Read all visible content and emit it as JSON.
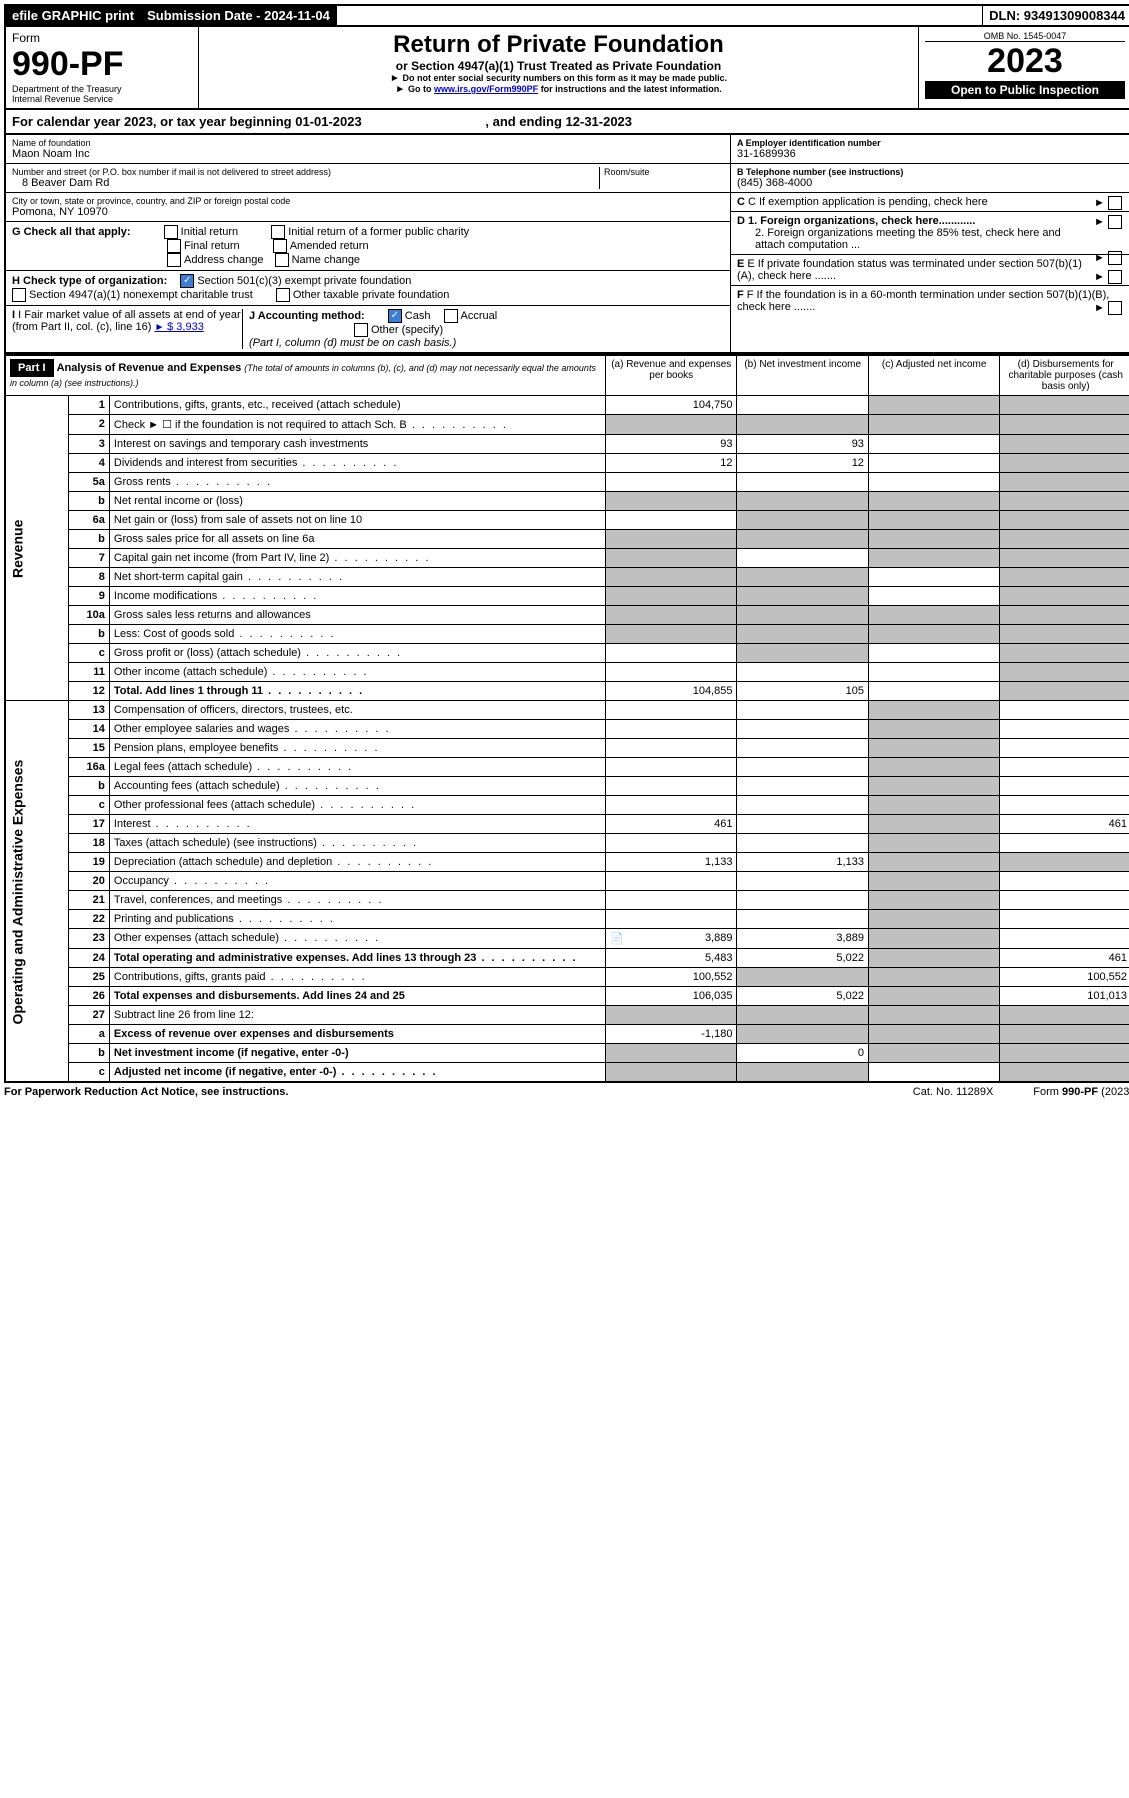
{
  "topbar": {
    "efile": "efile GRAPHIC print",
    "submission": "Submission Date - 2024-11-04",
    "dln": "DLN: 93491309008344"
  },
  "header": {
    "form_label": "Form",
    "form_no": "990-PF",
    "dept": "Department of the Treasury",
    "irs": "Internal Revenue Service",
    "title": "Return of Private Foundation",
    "subtitle": "or Section 4947(a)(1) Trust Treated as Private Foundation",
    "note1": "Do not enter social security numbers on this form as it may be made public.",
    "note2_pre": "Go to ",
    "note2_link": "www.irs.gov/Form990PF",
    "note2_post": " for instructions and the latest information.",
    "omb": "OMB No. 1545-0047",
    "year": "2023",
    "open": "Open to Public Inspection"
  },
  "calendar": {
    "text_a": "For calendar year 2023, or tax year beginning 01-01-2023",
    "text_b": ", and ending 12-31-2023"
  },
  "info": {
    "name_label": "Name of foundation",
    "name": "Maon Noam Inc",
    "addr_label": "Number and street (or P.O. box number if mail is not delivered to street address)",
    "addr": "8 Beaver Dam Rd",
    "room_label": "Room/suite",
    "city_label": "City or town, state or province, country, and ZIP or foreign postal code",
    "city": "Pomona, NY  10970",
    "a_label": "A Employer identification number",
    "a_val": "31-1689936",
    "b_label": "B Telephone number (see instructions)",
    "b_val": "(845) 368-4000",
    "c_label": "C If exemption application is pending, check here",
    "g_label": "G Check all that apply:",
    "g_opts": [
      "Initial return",
      "Final return",
      "Address change",
      "Initial return of a former public charity",
      "Amended return",
      "Name change"
    ],
    "d1": "D 1. Foreign organizations, check here............",
    "d2": "2. Foreign organizations meeting the 85% test, check here and attach computation ...",
    "h_label": "H Check type of organization:",
    "h_opt1": "Section 501(c)(3) exempt private foundation",
    "h_opt2": "Section 4947(a)(1) nonexempt charitable trust",
    "h_opt3": "Other taxable private foundation",
    "e_label": "E If private foundation status was terminated under section 507(b)(1)(A), check here .......",
    "i_label": "I Fair market value of all assets at end of year (from Part II, col. (c), line 16)",
    "i_val": "$  3,933",
    "j_label": "J Accounting method:",
    "j_cash": "Cash",
    "j_accrual": "Accrual",
    "j_other": "Other (specify)",
    "j_note": "(Part I, column (d) must be on cash basis.)",
    "f_label": "F If the foundation is in a 60-month termination under section 507(b)(1)(B), check here ......."
  },
  "part1": {
    "label": "Part I",
    "title": "Analysis of Revenue and Expenses",
    "title_note": " (The total of amounts in columns (b), (c), and (d) may not necessarily equal the amounts in column (a) (see instructions).)",
    "col_a": "(a)  Revenue and expenses per books",
    "col_b": "(b)  Net investment income",
    "col_c": "(c)  Adjusted net income",
    "col_d": "(d)  Disbursements for charitable purposes (cash basis only)"
  },
  "vlabels": {
    "rev": "Revenue",
    "exp": "Operating and Administrative Expenses"
  },
  "rows": [
    {
      "n": "1",
      "d": "Contributions, gifts, grants, etc., received (attach schedule)",
      "a": "104,750",
      "bsh": false,
      "csh": true,
      "dsh": true
    },
    {
      "n": "2",
      "d": "Check ► ☐ if the foundation is not required to attach Sch. B",
      "dots": true,
      "ash": true,
      "bsh": true,
      "csh": true,
      "dsh": true
    },
    {
      "n": "3",
      "d": "Interest on savings and temporary cash investments",
      "a": "93",
      "b": "93",
      "dsh": true
    },
    {
      "n": "4",
      "d": "Dividends and interest from securities",
      "dots": true,
      "a": "12",
      "b": "12",
      "dsh": true
    },
    {
      "n": "5a",
      "d": "Gross rents",
      "dots": true,
      "dsh": true
    },
    {
      "n": "b",
      "d": "Net rental income or (loss)",
      "ash": true,
      "bsh": true,
      "csh": true,
      "dsh": true
    },
    {
      "n": "6a",
      "d": "Net gain or (loss) from sale of assets not on line 10",
      "bsh": true,
      "csh": true,
      "dsh": true
    },
    {
      "n": "b",
      "d": "Gross sales price for all assets on line 6a",
      "ash": true,
      "bsh": true,
      "csh": true,
      "dsh": true
    },
    {
      "n": "7",
      "d": "Capital gain net income (from Part IV, line 2)",
      "dots": true,
      "ash": true,
      "csh": true,
      "dsh": true
    },
    {
      "n": "8",
      "d": "Net short-term capital gain",
      "dots": true,
      "ash": true,
      "bsh": true,
      "dsh": true
    },
    {
      "n": "9",
      "d": "Income modifications",
      "dots": true,
      "ash": true,
      "bsh": true,
      "dsh": true
    },
    {
      "n": "10a",
      "d": "Gross sales less returns and allowances",
      "ash": true,
      "bsh": true,
      "csh": true,
      "dsh": true
    },
    {
      "n": "b",
      "d": "Less: Cost of goods sold",
      "dots": true,
      "ash": true,
      "bsh": true,
      "csh": true,
      "dsh": true
    },
    {
      "n": "c",
      "d": "Gross profit or (loss) (attach schedule)",
      "dots": true,
      "bsh": true,
      "dsh": true
    },
    {
      "n": "11",
      "d": "Other income (attach schedule)",
      "dots": true,
      "dsh": true
    },
    {
      "n": "12",
      "d": "Total. Add lines 1 through 11",
      "dots": true,
      "bold": true,
      "a": "104,855",
      "b": "105",
      "dsh": true
    },
    {
      "n": "13",
      "d": "Compensation of officers, directors, trustees, etc.",
      "csh": true
    },
    {
      "n": "14",
      "d": "Other employee salaries and wages",
      "dots": true,
      "csh": true
    },
    {
      "n": "15",
      "d": "Pension plans, employee benefits",
      "dots": true,
      "csh": true
    },
    {
      "n": "16a",
      "d": "Legal fees (attach schedule)",
      "dots": true,
      "csh": true
    },
    {
      "n": "b",
      "d": "Accounting fees (attach schedule)",
      "dots": true,
      "csh": true
    },
    {
      "n": "c",
      "d": "Other professional fees (attach schedule)",
      "dots": true,
      "csh": true
    },
    {
      "n": "17",
      "d": "Interest",
      "dots": true,
      "a": "461",
      "csh": true,
      "dv": "461"
    },
    {
      "n": "18",
      "d": "Taxes (attach schedule) (see instructions)",
      "dots": true,
      "csh": true
    },
    {
      "n": "19",
      "d": "Depreciation (attach schedule) and depletion",
      "dots": true,
      "a": "1,133",
      "b": "1,133",
      "csh": true,
      "dsh": true
    },
    {
      "n": "20",
      "d": "Occupancy",
      "dots": true,
      "csh": true
    },
    {
      "n": "21",
      "d": "Travel, conferences, and meetings",
      "dots": true,
      "csh": true
    },
    {
      "n": "22",
      "d": "Printing and publications",
      "dots": true,
      "csh": true
    },
    {
      "n": "23",
      "d": "Other expenses (attach schedule)",
      "dots": true,
      "a": "3,889",
      "b": "3,889",
      "icon": true,
      "csh": true
    },
    {
      "n": "24",
      "d": "Total operating and administrative expenses. Add lines 13 through 23",
      "dots": true,
      "bold": true,
      "a": "5,483",
      "b": "5,022",
      "csh": true,
      "dv": "461"
    },
    {
      "n": "25",
      "d": "Contributions, gifts, grants paid",
      "dots": true,
      "a": "100,552",
      "bsh": true,
      "csh": true,
      "dv": "100,552"
    },
    {
      "n": "26",
      "d": "Total expenses and disbursements. Add lines 24 and 25",
      "bold": true,
      "a": "106,035",
      "b": "5,022",
      "csh": true,
      "dv": "101,013"
    },
    {
      "n": "27",
      "d": "Subtract line 26 from line 12:",
      "ash": true,
      "bsh": true,
      "csh": true,
      "dsh": true
    },
    {
      "n": "a",
      "d": "Excess of revenue over expenses and disbursements",
      "bold": true,
      "a": "-1,180",
      "bsh": true,
      "csh": true,
      "dsh": true
    },
    {
      "n": "b",
      "d": "Net investment income (if negative, enter -0-)",
      "bold": true,
      "ash": true,
      "b": "0",
      "csh": true,
      "dsh": true
    },
    {
      "n": "c",
      "d": "Adjusted net income (if negative, enter -0-)",
      "dots": true,
      "bold": true,
      "ash": true,
      "bsh": true,
      "dsh": true
    }
  ],
  "footer": {
    "left": "For Paperwork Reduction Act Notice, see instructions.",
    "mid": "Cat. No. 11289X",
    "right": "Form 990-PF (2023)"
  }
}
